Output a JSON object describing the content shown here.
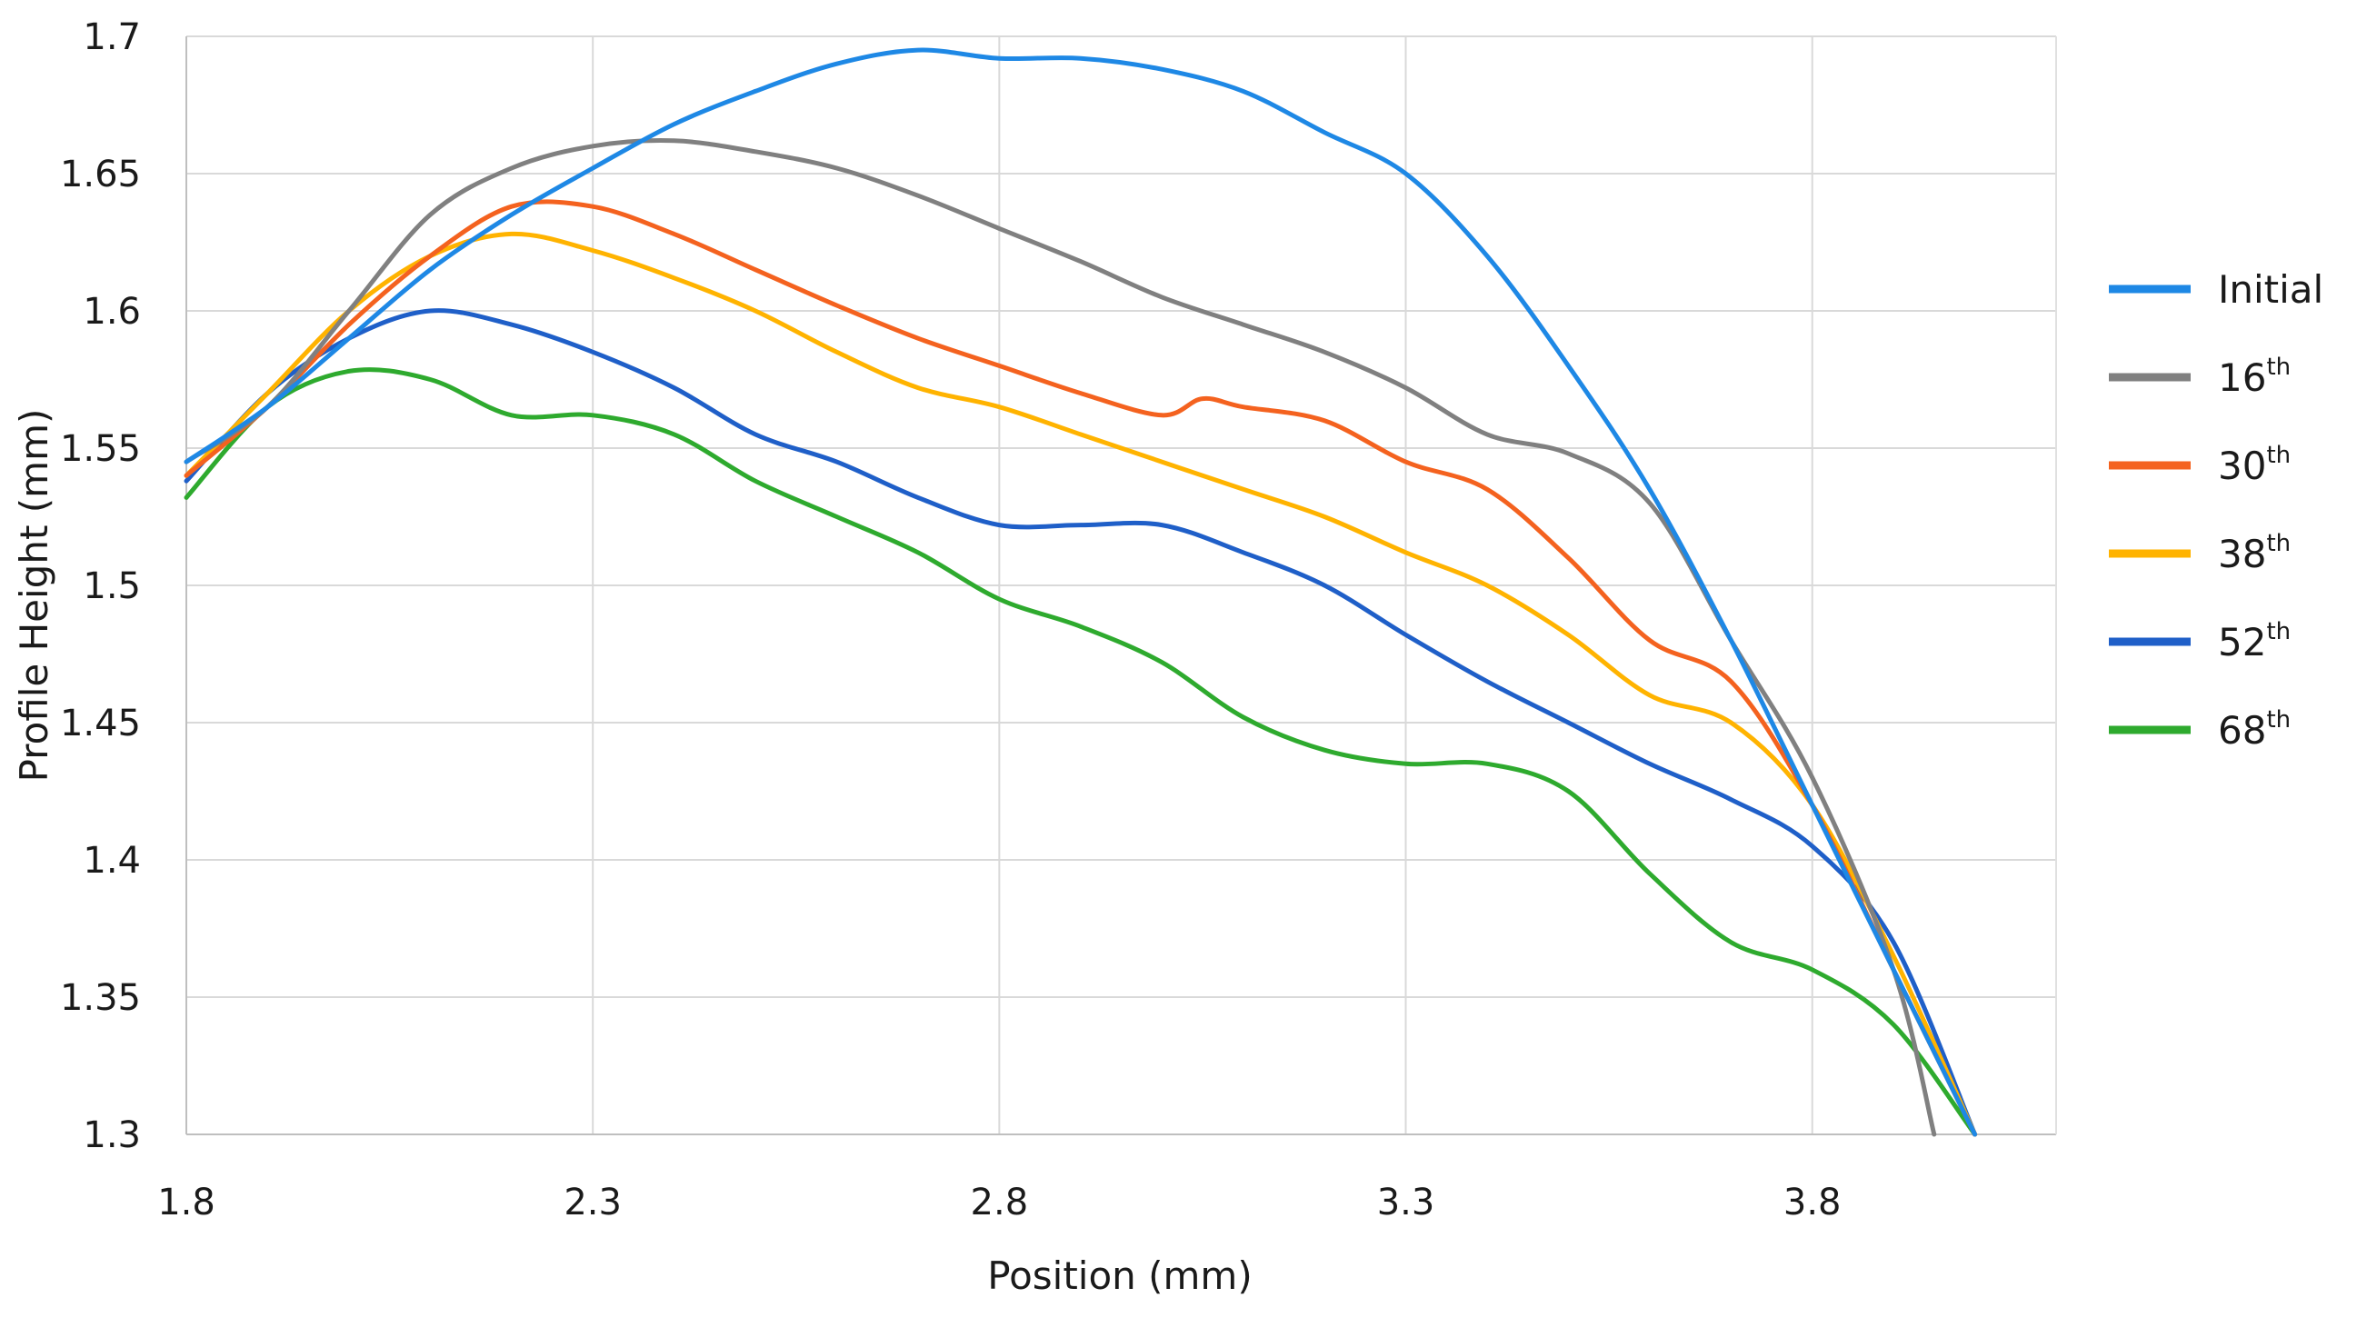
{
  "chart_data": {
    "type": "line",
    "title": "",
    "xlabel": "Position (mm)",
    "ylabel": "Profile Height (mm)",
    "xlim": [
      1.8,
      4.1
    ],
    "ylim": [
      1.3,
      1.7
    ],
    "xticks": [
      1.8,
      2.3,
      2.8,
      3.3,
      3.8
    ],
    "xtick_labels": [
      "1.8",
      "2.3",
      "2.8",
      "3.3",
      "3.8"
    ],
    "yticks": [
      1.3,
      1.35,
      1.4,
      1.45,
      1.5,
      1.55,
      1.6,
      1.65,
      1.7
    ],
    "ytick_labels": [
      "1.3",
      "1.35",
      "1.4",
      "1.45",
      "1.5",
      "1.55",
      "1.6",
      "1.65",
      "1.7"
    ],
    "grid": true,
    "legend_position": "right",
    "series": [
      {
        "name": "Initial",
        "sup": "",
        "color": "#1e88e5",
        "points": [
          [
            1.8,
            1.545
          ],
          [
            1.9,
            1.565
          ],
          [
            2.0,
            1.59
          ],
          [
            2.1,
            1.615
          ],
          [
            2.2,
            1.635
          ],
          [
            2.3,
            1.652
          ],
          [
            2.4,
            1.668
          ],
          [
            2.5,
            1.68
          ],
          [
            2.6,
            1.69
          ],
          [
            2.7,
            1.695
          ],
          [
            2.8,
            1.692
          ],
          [
            2.9,
            1.692
          ],
          [
            3.0,
            1.688
          ],
          [
            3.1,
            1.68
          ],
          [
            3.2,
            1.665
          ],
          [
            3.3,
            1.65
          ],
          [
            3.4,
            1.62
          ],
          [
            3.5,
            1.58
          ],
          [
            3.6,
            1.535
          ],
          [
            3.7,
            1.48
          ],
          [
            3.8,
            1.42
          ],
          [
            3.9,
            1.36
          ],
          [
            4.0,
            1.3
          ]
        ]
      },
      {
        "name": "16",
        "sup": "th",
        "color": "#808080",
        "points": [
          [
            1.8,
            1.545
          ],
          [
            1.9,
            1.565
          ],
          [
            2.0,
            1.6
          ],
          [
            2.1,
            1.635
          ],
          [
            2.2,
            1.652
          ],
          [
            2.3,
            1.66
          ],
          [
            2.4,
            1.662
          ],
          [
            2.5,
            1.658
          ],
          [
            2.6,
            1.652
          ],
          [
            2.7,
            1.642
          ],
          [
            2.8,
            1.63
          ],
          [
            2.9,
            1.618
          ],
          [
            3.0,
            1.605
          ],
          [
            3.1,
            1.595
          ],
          [
            3.2,
            1.585
          ],
          [
            3.3,
            1.572
          ],
          [
            3.4,
            1.555
          ],
          [
            3.5,
            1.548
          ],
          [
            3.6,
            1.53
          ],
          [
            3.7,
            1.48
          ],
          [
            3.8,
            1.43
          ],
          [
            3.9,
            1.36
          ],
          [
            3.95,
            1.3
          ]
        ]
      },
      {
        "name": "30",
        "sup": "th",
        "color": "#f4621f",
        "points": [
          [
            1.8,
            1.54
          ],
          [
            1.9,
            1.565
          ],
          [
            2.0,
            1.595
          ],
          [
            2.1,
            1.62
          ],
          [
            2.2,
            1.638
          ],
          [
            2.3,
            1.638
          ],
          [
            2.4,
            1.628
          ],
          [
            2.5,
            1.615
          ],
          [
            2.6,
            1.602
          ],
          [
            2.7,
            1.59
          ],
          [
            2.8,
            1.58
          ],
          [
            2.9,
            1.57
          ],
          [
            3.0,
            1.562
          ],
          [
            3.05,
            1.568
          ],
          [
            3.1,
            1.565
          ],
          [
            3.2,
            1.56
          ],
          [
            3.3,
            1.545
          ],
          [
            3.4,
            1.535
          ],
          [
            3.5,
            1.51
          ],
          [
            3.6,
            1.48
          ],
          [
            3.7,
            1.465
          ],
          [
            3.8,
            1.42
          ],
          [
            3.9,
            1.36
          ],
          [
            4.0,
            1.3
          ]
        ]
      },
      {
        "name": "38",
        "sup": "th",
        "color": "#ffb300",
        "points": [
          [
            1.8,
            1.54
          ],
          [
            1.9,
            1.57
          ],
          [
            2.0,
            1.6
          ],
          [
            2.1,
            1.62
          ],
          [
            2.2,
            1.628
          ],
          [
            2.3,
            1.622
          ],
          [
            2.4,
            1.612
          ],
          [
            2.5,
            1.6
          ],
          [
            2.6,
            1.585
          ],
          [
            2.7,
            1.572
          ],
          [
            2.8,
            1.565
          ],
          [
            2.9,
            1.555
          ],
          [
            3.0,
            1.545
          ],
          [
            3.1,
            1.535
          ],
          [
            3.2,
            1.525
          ],
          [
            3.3,
            1.512
          ],
          [
            3.4,
            1.5
          ],
          [
            3.5,
            1.482
          ],
          [
            3.6,
            1.46
          ],
          [
            3.7,
            1.45
          ],
          [
            3.8,
            1.42
          ],
          [
            3.9,
            1.365
          ],
          [
            4.0,
            1.3
          ]
        ]
      },
      {
        "name": "52",
        "sup": "th",
        "color": "#1f5fc8",
        "points": [
          [
            1.8,
            1.538
          ],
          [
            1.9,
            1.57
          ],
          [
            2.0,
            1.59
          ],
          [
            2.1,
            1.6
          ],
          [
            2.2,
            1.595
          ],
          [
            2.3,
            1.585
          ],
          [
            2.4,
            1.572
          ],
          [
            2.5,
            1.555
          ],
          [
            2.6,
            1.545
          ],
          [
            2.7,
            1.532
          ],
          [
            2.8,
            1.522
          ],
          [
            2.9,
            1.522
          ],
          [
            3.0,
            1.522
          ],
          [
            3.1,
            1.512
          ],
          [
            3.2,
            1.5
          ],
          [
            3.3,
            1.482
          ],
          [
            3.4,
            1.465
          ],
          [
            3.5,
            1.45
          ],
          [
            3.6,
            1.435
          ],
          [
            3.7,
            1.422
          ],
          [
            3.8,
            1.405
          ],
          [
            3.9,
            1.37
          ],
          [
            4.0,
            1.3
          ]
        ]
      },
      {
        "name": "68",
        "sup": "th",
        "color": "#2eaa2e",
        "points": [
          [
            1.8,
            1.532
          ],
          [
            1.9,
            1.565
          ],
          [
            2.0,
            1.578
          ],
          [
            2.1,
            1.575
          ],
          [
            2.2,
            1.562
          ],
          [
            2.3,
            1.562
          ],
          [
            2.4,
            1.555
          ],
          [
            2.5,
            1.538
          ],
          [
            2.6,
            1.525
          ],
          [
            2.7,
            1.512
          ],
          [
            2.8,
            1.495
          ],
          [
            2.9,
            1.485
          ],
          [
            3.0,
            1.472
          ],
          [
            3.1,
            1.452
          ],
          [
            3.2,
            1.44
          ],
          [
            3.3,
            1.435
          ],
          [
            3.4,
            1.435
          ],
          [
            3.5,
            1.425
          ],
          [
            3.6,
            1.395
          ],
          [
            3.7,
            1.37
          ],
          [
            3.8,
            1.36
          ],
          [
            3.9,
            1.34
          ],
          [
            4.0,
            1.3
          ]
        ]
      }
    ]
  }
}
